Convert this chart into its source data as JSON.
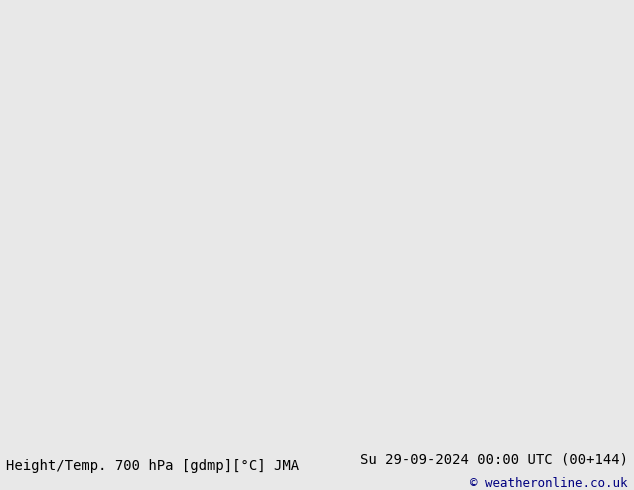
{
  "title_left": "Height/Temp. 700 hPa [gdmp][°C] JMA",
  "title_right": "Su 29-09-2024 00:00 UTC (00+144)",
  "copyright": "© weatheronline.co.uk",
  "background_color": "#e8e8e8",
  "land_color": "#bbf0a0",
  "ocean_color": "#e8e8e8",
  "border_color": "#555555",
  "state_border_color": "#333333",
  "font_size_bottom": 10,
  "font_size_copyright": 9,
  "map_extent": [
    -170,
    10,
    -50,
    80
  ],
  "figsize": [
    6.34,
    4.9
  ],
  "dpi": 100
}
